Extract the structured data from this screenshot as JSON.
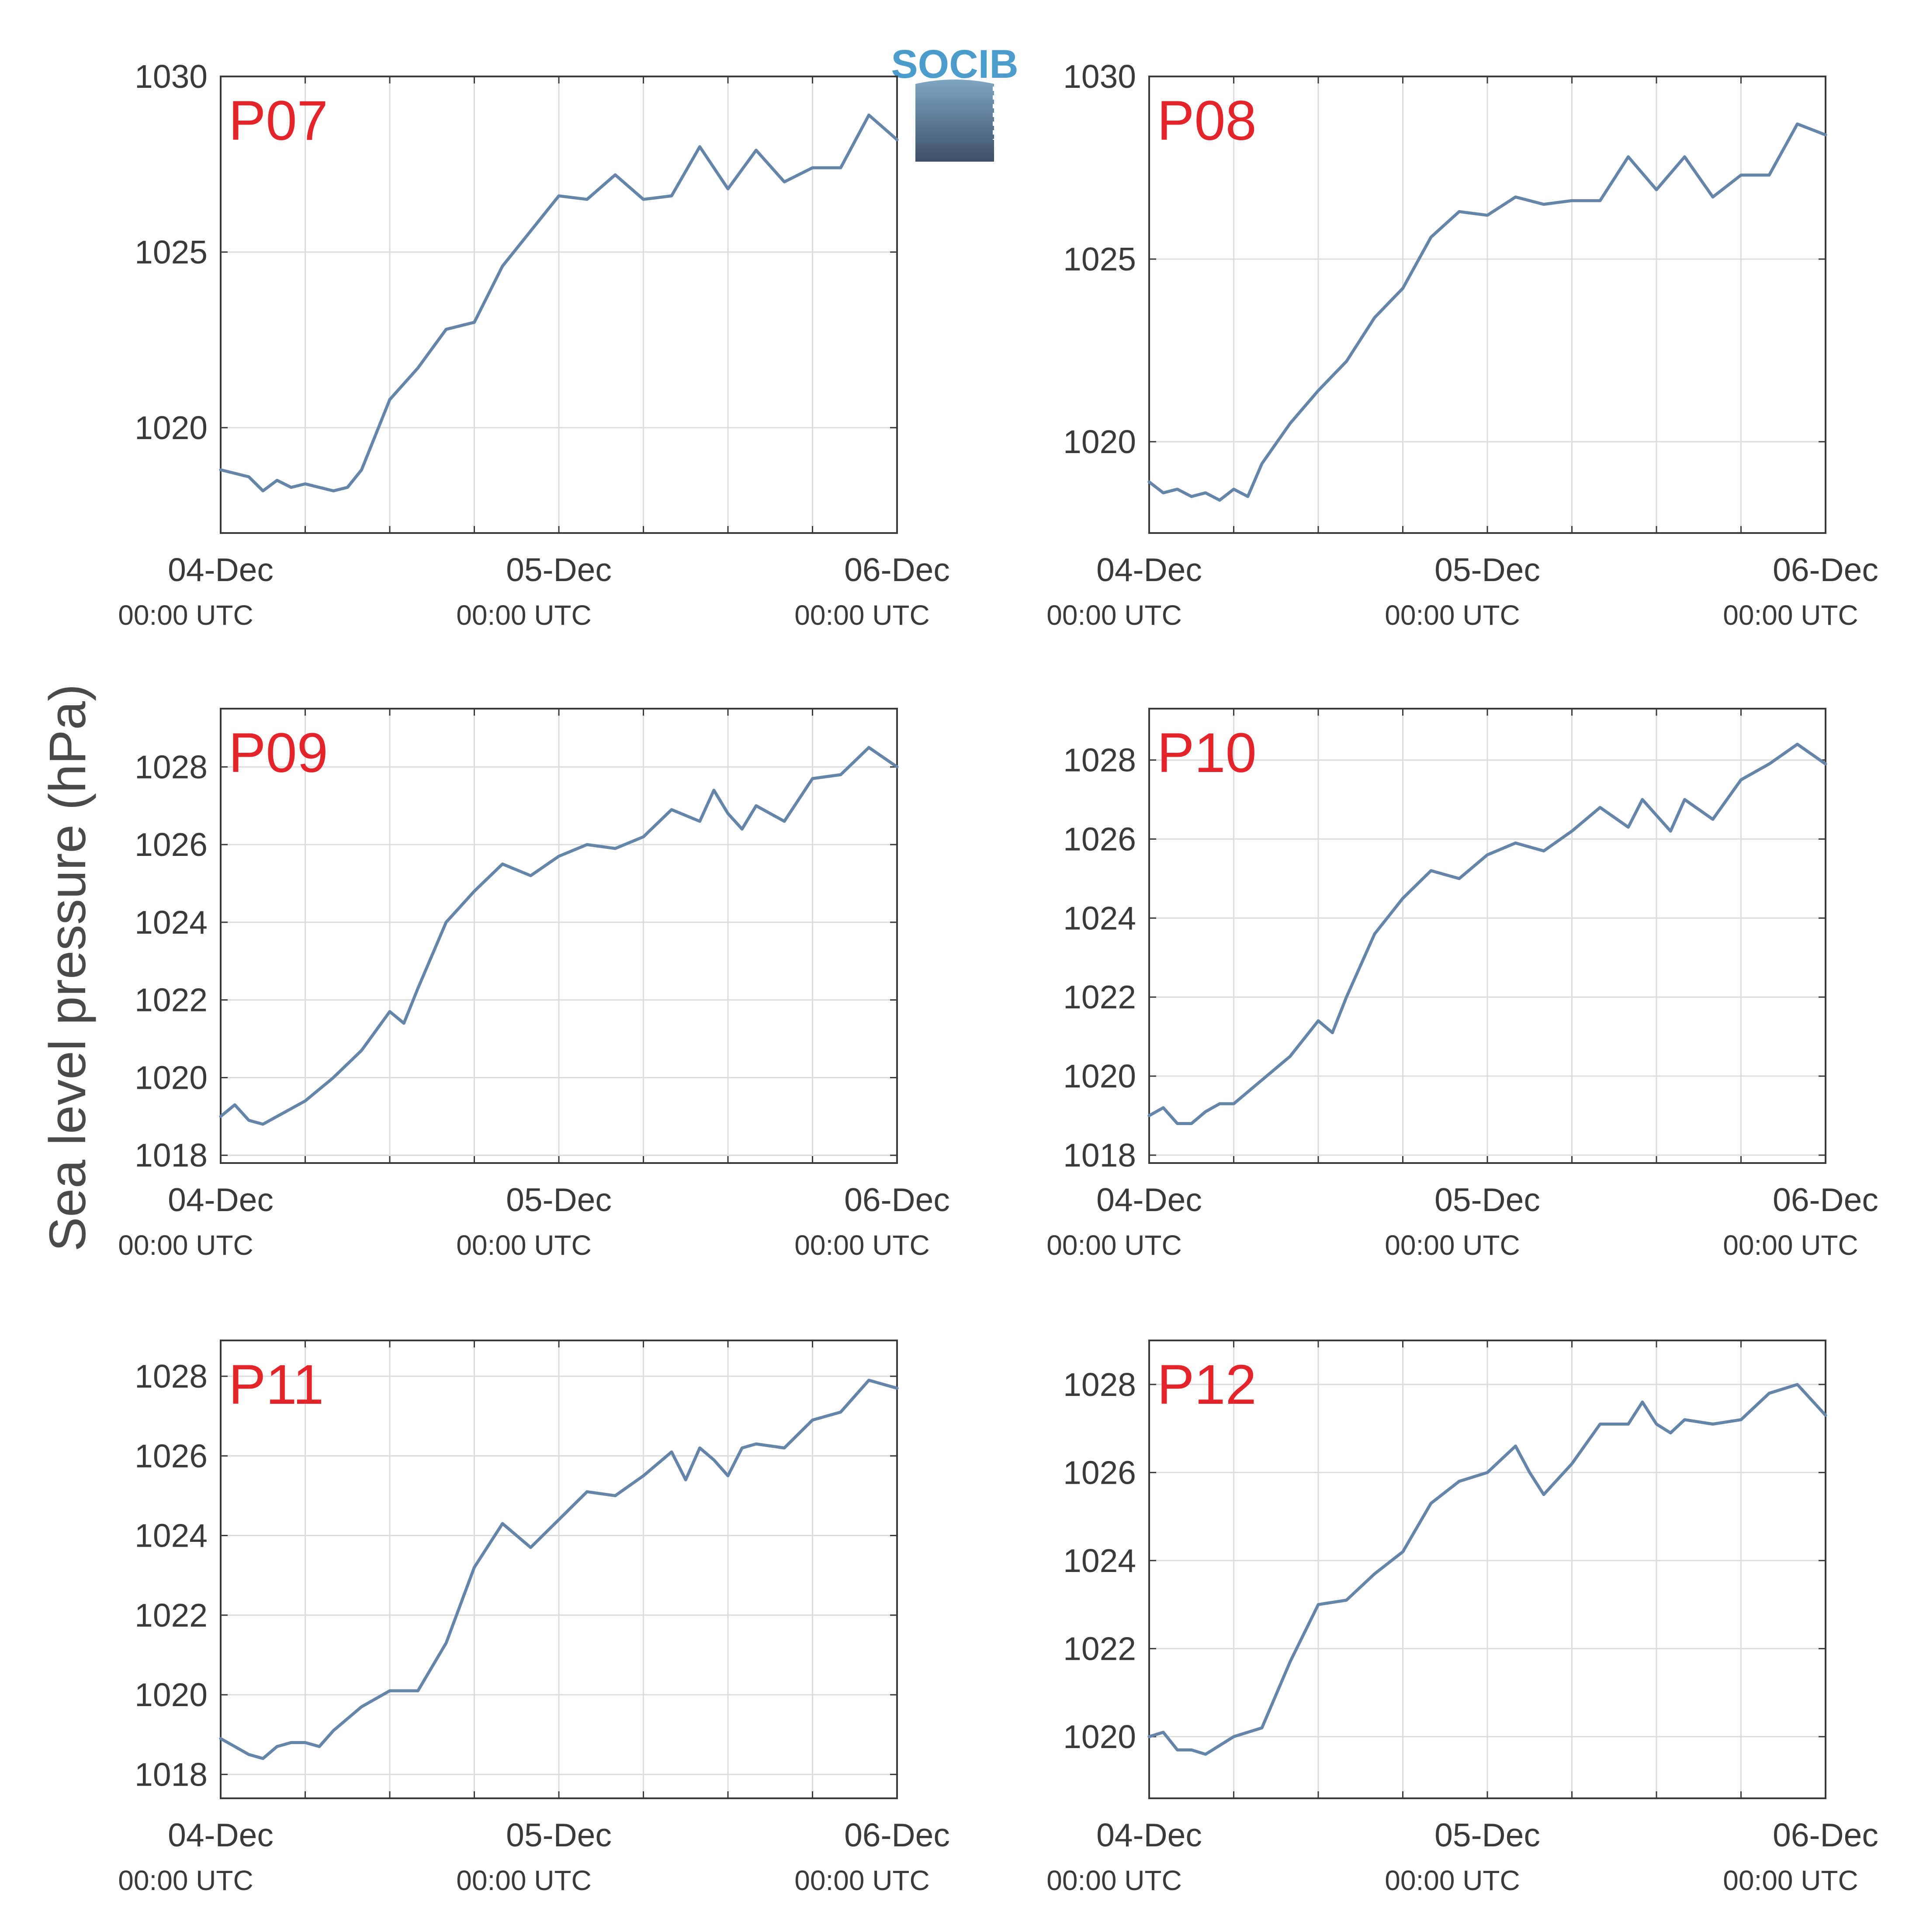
{
  "figure": {
    "ylabel": "Sea level pressure (hPa)",
    "logo_text": "SOCIB",
    "colors": {
      "line": "#6585a8",
      "label": "#e3242b",
      "grid": "#dcdcdc",
      "axis": "#3a3a3a"
    }
  },
  "chart_data": [
    {
      "type": "line",
      "label": "P07",
      "ylim": [
        1017,
        1030
      ],
      "yticks": [
        1020,
        1025,
        1030
      ],
      "xticks": [
        {
          "date": "04-Dec",
          "time": "00:00 UTC"
        },
        {
          "date": "05-Dec",
          "time": "00:00 UTC"
        },
        {
          "date": "06-Dec",
          "time": "00:00 UTC"
        }
      ],
      "x_hours": [
        0,
        2,
        3,
        4,
        5,
        6,
        8,
        9,
        10,
        12,
        14,
        16,
        18,
        20,
        22,
        24,
        26,
        28,
        30,
        32,
        34,
        36,
        38,
        40,
        42,
        44,
        46,
        48
      ],
      "values": [
        1018.8,
        1018.6,
        1018.2,
        1018.5,
        1018.3,
        1018.4,
        1018.2,
        1018.3,
        1018.8,
        1020.8,
        1021.7,
        1022.8,
        1023.0,
        1024.6,
        1025.6,
        1026.6,
        1026.5,
        1027.2,
        1026.5,
        1026.6,
        1028.0,
        1026.8,
        1027.9,
        1027.0,
        1027.4,
        1027.4,
        1028.9,
        1028.2
      ],
      "grid": true
    },
    {
      "type": "line",
      "label": "P08",
      "ylim": [
        1017.5,
        1030
      ],
      "yticks": [
        1020,
        1025,
        1030
      ],
      "xticks": [
        {
          "date": "04-Dec",
          "time": "00:00 UTC"
        },
        {
          "date": "05-Dec",
          "time": "00:00 UTC"
        },
        {
          "date": "06-Dec",
          "time": "00:00 UTC"
        }
      ],
      "x_hours": [
        0,
        1,
        2,
        3,
        4,
        5,
        6,
        7,
        8,
        10,
        12,
        14,
        16,
        18,
        20,
        22,
        24,
        26,
        28,
        30,
        32,
        34,
        36,
        38,
        40,
        42,
        44,
        46,
        48
      ],
      "values": [
        1018.9,
        1018.6,
        1018.7,
        1018.5,
        1018.6,
        1018.4,
        1018.7,
        1018.5,
        1019.4,
        1020.5,
        1021.4,
        1022.2,
        1023.4,
        1024.2,
        1025.6,
        1026.3,
        1026.2,
        1026.7,
        1026.5,
        1026.6,
        1026.6,
        1027.8,
        1026.9,
        1027.8,
        1026.7,
        1027.3,
        1027.3,
        1028.7,
        1028.4
      ],
      "grid": true
    },
    {
      "type": "line",
      "label": "P09",
      "ylim": [
        1017.8,
        1029.5
      ],
      "yticks": [
        1018,
        1020,
        1022,
        1024,
        1026,
        1028
      ],
      "xticks": [
        {
          "date": "04-Dec",
          "time": "00:00 UTC"
        },
        {
          "date": "05-Dec",
          "time": "00:00 UTC"
        },
        {
          "date": "06-Dec",
          "time": "00:00 UTC"
        }
      ],
      "x_hours": [
        0,
        1,
        2,
        3,
        4,
        5,
        6,
        8,
        10,
        12,
        13,
        14,
        16,
        18,
        20,
        22,
        24,
        26,
        28,
        30,
        32,
        34,
        35,
        36,
        37,
        38,
        40,
        42,
        44,
        46,
        48
      ],
      "values": [
        1019.0,
        1019.3,
        1018.9,
        1018.8,
        1019.0,
        1019.2,
        1019.4,
        1020.0,
        1020.7,
        1021.7,
        1021.4,
        1022.3,
        1024.0,
        1024.8,
        1025.5,
        1025.2,
        1025.7,
        1026.0,
        1025.9,
        1026.2,
        1026.9,
        1026.6,
        1027.4,
        1026.8,
        1026.4,
        1027.0,
        1026.6,
        1027.7,
        1027.8,
        1028.5,
        1028.0
      ],
      "grid": true
    },
    {
      "type": "line",
      "label": "P10",
      "ylim": [
        1017.8,
        1029.3
      ],
      "yticks": [
        1018,
        1020,
        1022,
        1024,
        1026,
        1028
      ],
      "xticks": [
        {
          "date": "04-Dec",
          "time": "00:00 UTC"
        },
        {
          "date": "05-Dec",
          "time": "00:00 UTC"
        },
        {
          "date": "06-Dec",
          "time": "00:00 UTC"
        }
      ],
      "x_hours": [
        0,
        1,
        2,
        3,
        4,
        5,
        6,
        8,
        10,
        12,
        13,
        14,
        16,
        18,
        20,
        22,
        24,
        26,
        28,
        30,
        32,
        34,
        35,
        36,
        37,
        38,
        40,
        42,
        44,
        46,
        48
      ],
      "values": [
        1019.0,
        1019.2,
        1018.8,
        1018.8,
        1019.1,
        1019.3,
        1019.3,
        1019.9,
        1020.5,
        1021.4,
        1021.1,
        1022.0,
        1023.6,
        1024.5,
        1025.2,
        1025.0,
        1025.6,
        1025.9,
        1025.7,
        1026.2,
        1026.8,
        1026.3,
        1027.0,
        1026.6,
        1026.2,
        1027.0,
        1026.5,
        1027.5,
        1027.9,
        1028.4,
        1027.9
      ],
      "grid": true
    },
    {
      "type": "line",
      "label": "P11",
      "ylim": [
        1017.4,
        1028.9
      ],
      "yticks": [
        1018,
        1020,
        1022,
        1024,
        1026,
        1028
      ],
      "xticks": [
        {
          "date": "04-Dec",
          "time": "00:00 UTC"
        },
        {
          "date": "05-Dec",
          "time": "00:00 UTC"
        },
        {
          "date": "06-Dec",
          "time": "00:00 UTC"
        }
      ],
      "x_hours": [
        0,
        1,
        2,
        3,
        4,
        5,
        6,
        7,
        8,
        10,
        12,
        14,
        16,
        18,
        20,
        22,
        24,
        26,
        28,
        30,
        32,
        33,
        34,
        35,
        36,
        37,
        38,
        40,
        42,
        44,
        46,
        48
      ],
      "values": [
        1018.9,
        1018.7,
        1018.5,
        1018.4,
        1018.7,
        1018.8,
        1018.8,
        1018.7,
        1019.1,
        1019.7,
        1020.1,
        1020.1,
        1021.3,
        1023.2,
        1024.3,
        1023.7,
        1024.4,
        1025.1,
        1025.0,
        1025.5,
        1026.1,
        1025.4,
        1026.2,
        1025.9,
        1025.5,
        1026.2,
        1026.3,
        1026.2,
        1026.9,
        1027.1,
        1027.9,
        1027.7
      ],
      "grid": true
    },
    {
      "type": "line",
      "label": "P12",
      "ylim": [
        1018.6,
        1029
      ],
      "yticks": [
        1020,
        1022,
        1024,
        1026,
        1028
      ],
      "xticks": [
        {
          "date": "04-Dec",
          "time": "00:00 UTC"
        },
        {
          "date": "05-Dec",
          "time": "00:00 UTC"
        },
        {
          "date": "06-Dec",
          "time": "00:00 UTC"
        }
      ],
      "x_hours": [
        0,
        1,
        2,
        3,
        4,
        5,
        6,
        7,
        8,
        10,
        12,
        14,
        16,
        18,
        20,
        22,
        24,
        26,
        27,
        28,
        30,
        32,
        34,
        35,
        36,
        37,
        38,
        40,
        42,
        44,
        46,
        48
      ],
      "values": [
        1020.0,
        1020.1,
        1019.7,
        1019.7,
        1019.6,
        1019.8,
        1020.0,
        1020.1,
        1020.2,
        1021.7,
        1023.0,
        1023.1,
        1023.7,
        1024.2,
        1025.3,
        1025.8,
        1026.0,
        1026.6,
        1026.0,
        1025.5,
        1026.2,
        1027.1,
        1027.1,
        1027.6,
        1027.1,
        1026.9,
        1027.2,
        1027.1,
        1027.2,
        1027.8,
        1028.0,
        1027.3
      ],
      "grid": true
    }
  ]
}
